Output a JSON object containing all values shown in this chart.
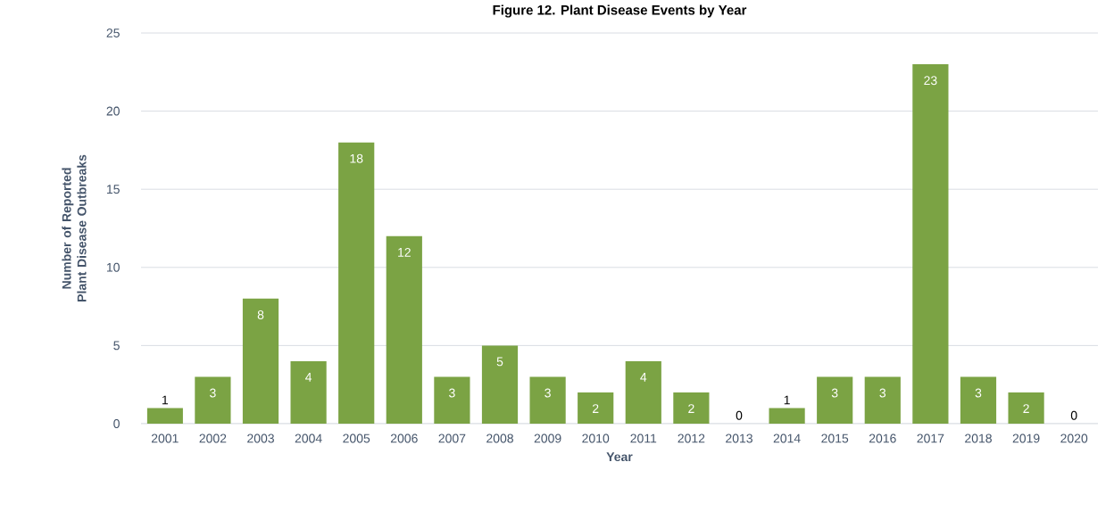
{
  "chart_data": {
    "type": "bar",
    "title": "Figure 12. Plant Disease Events by Year",
    "xlabel": "Year",
    "ylabel": "Number of Reported Plant Disease Outbreaks",
    "categories": [
      "2001",
      "2002",
      "2003",
      "2004",
      "2005",
      "2006",
      "2007",
      "2008",
      "2009",
      "2010",
      "2011",
      "2012",
      "2013",
      "2014",
      "2015",
      "2016",
      "2017",
      "2018",
      "2019",
      "2020"
    ],
    "values": [
      1,
      3,
      8,
      4,
      18,
      12,
      3,
      5,
      3,
      2,
      4,
      2,
      0,
      1,
      3,
      3,
      23,
      3,
      2,
      0
    ],
    "color": "#7ba344",
    "ylim": [
      0,
      25
    ],
    "yticks": [
      0,
      5,
      10,
      15,
      20,
      25
    ],
    "grid": "y",
    "data_labels": true,
    "legend": false
  }
}
